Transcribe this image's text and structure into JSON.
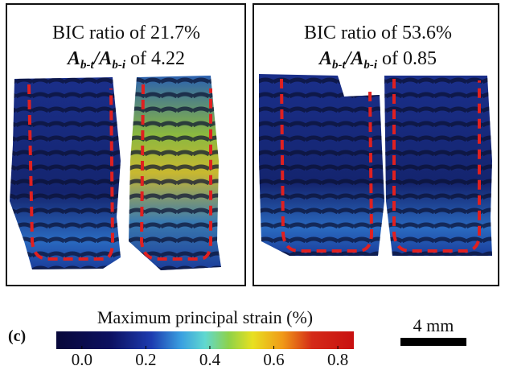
{
  "panels": [
    {
      "bic_label": "BIC ratio of 21.7%",
      "ratio_label": {
        "base1": "A",
        "sub1": "b-t",
        "sep": "/",
        "base2": "A",
        "sub2": "b-i",
        "rest": " of 4.22"
      }
    },
    {
      "bic_label": "BIC ratio of 53.6%",
      "ratio_label": {
        "base1": "A",
        "sub1": "b-t",
        "sep": "/",
        "base2": "A",
        "sub2": "b-i",
        "rest": " of 0.85"
      }
    }
  ],
  "figure_label": "(c)",
  "colorbar": {
    "title": "Maximum principal strain (%)",
    "range": [
      -0.08,
      0.85
    ],
    "ticks": [
      {
        "value": 0,
        "label": "0.0"
      },
      {
        "value": 0.2,
        "label": "0.2"
      },
      {
        "value": 0.4,
        "label": "0.4"
      },
      {
        "value": 0.6,
        "label": "0.6"
      },
      {
        "value": 0.8,
        "label": "0.8"
      }
    ]
  },
  "scale_bar": {
    "label": "4 mm"
  }
}
